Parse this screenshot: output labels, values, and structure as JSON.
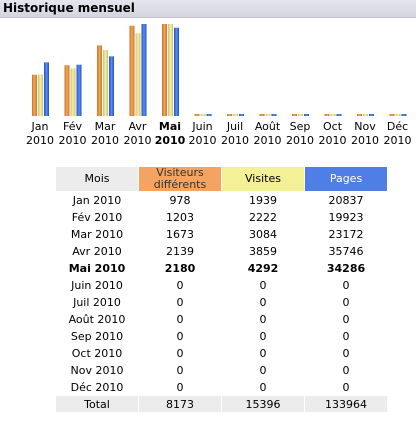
{
  "title": "Historique mensuel",
  "colors": {
    "visitors": "#f4a460",
    "visits": "#f4f096",
    "pages": "#4f7ee6"
  },
  "chart_data": {
    "type": "bar",
    "categories": [
      "Jan 2010",
      "Fév 2010",
      "Mar 2010",
      "Avr 2010",
      "Mai 2010",
      "Juin 2010",
      "Juil 2010",
      "Août 2010",
      "Sep 2010",
      "Oct 2010",
      "Nov 2010",
      "Déc 2010"
    ],
    "series": [
      {
        "name": "Visiteurs différents",
        "values": [
          978,
          1203,
          1673,
          2139,
          2180,
          0,
          0,
          0,
          0,
          0,
          0,
          0
        ]
      },
      {
        "name": "Visites",
        "values": [
          1939,
          2222,
          3084,
          3859,
          4292,
          0,
          0,
          0,
          0,
          0,
          0,
          0
        ]
      },
      {
        "name": "Pages",
        "values": [
          20837,
          19923,
          23172,
          35746,
          34286,
          0,
          0,
          0,
          0,
          0,
          0,
          0
        ]
      }
    ]
  },
  "months": [
    {
      "m": "Jan",
      "y": "2010"
    },
    {
      "m": "Fév",
      "y": "2010"
    },
    {
      "m": "Mar",
      "y": "2010"
    },
    {
      "m": "Avr",
      "y": "2010"
    },
    {
      "m": "Mai",
      "y": "2010"
    },
    {
      "m": "Juin",
      "y": "2010"
    },
    {
      "m": "Juil",
      "y": "2010"
    },
    {
      "m": "Août",
      "y": "2010"
    },
    {
      "m": "Sep",
      "y": "2010"
    },
    {
      "m": "Oct",
      "y": "2010"
    },
    {
      "m": "Nov",
      "y": "2010"
    },
    {
      "m": "Déc",
      "y": "2010"
    }
  ],
  "current_month_index": 4,
  "table": {
    "headers": {
      "month": "Mois",
      "visitors_1": "Visiteurs",
      "visitors_2": "différents",
      "visits": "Visites",
      "pages": "Pages"
    },
    "rows": [
      [
        "Jan 2010",
        "978",
        "1939",
        "20837"
      ],
      [
        "Fév 2010",
        "1203",
        "2222",
        "19923"
      ],
      [
        "Mar 2010",
        "1673",
        "3084",
        "23172"
      ],
      [
        "Avr 2010",
        "2139",
        "3859",
        "35746"
      ],
      [
        "Mai 2010",
        "2180",
        "4292",
        "34286"
      ],
      [
        "Juin 2010",
        "0",
        "0",
        "0"
      ],
      [
        "Juil 2010",
        "0",
        "0",
        "0"
      ],
      [
        "Août 2010",
        "0",
        "0",
        "0"
      ],
      [
        "Sep 2010",
        "0",
        "0",
        "0"
      ],
      [
        "Oct 2010",
        "0",
        "0",
        "0"
      ],
      [
        "Nov 2010",
        "0",
        "0",
        "0"
      ],
      [
        "Déc 2010",
        "0",
        "0",
        "0"
      ]
    ],
    "total": [
      "Total",
      "8173",
      "15396",
      "133964"
    ]
  }
}
